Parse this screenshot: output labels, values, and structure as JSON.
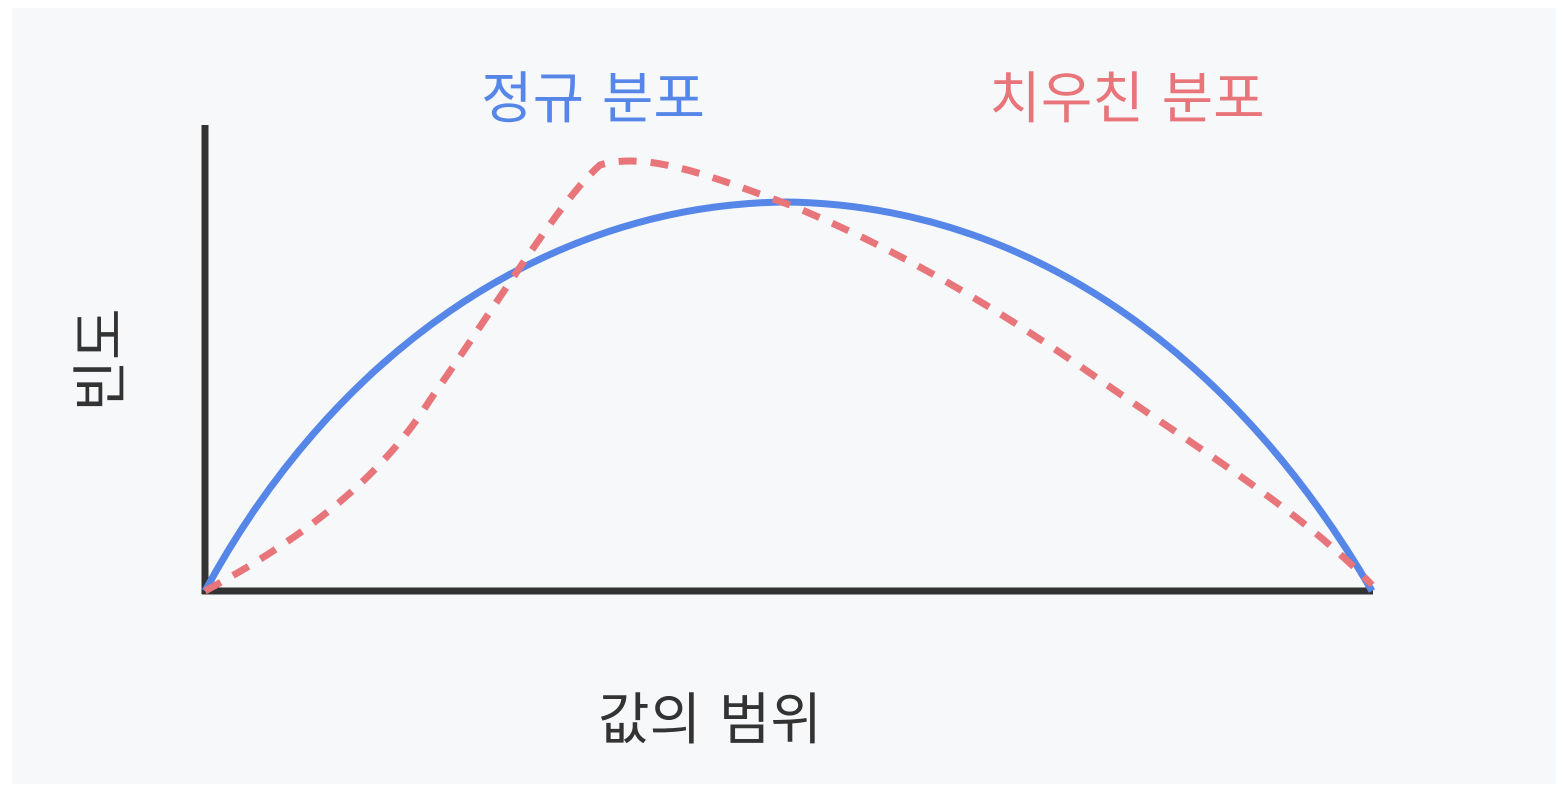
{
  "legend": {
    "normal": "정규 분포",
    "skewed": "치우친 분포"
  },
  "axes": {
    "y_label": "빈도",
    "x_label": "값의 범위"
  }
}
